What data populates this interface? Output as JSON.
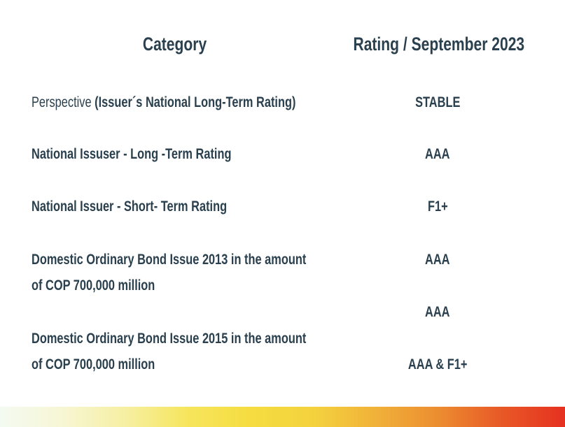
{
  "page": {
    "background_color": "#ffffff",
    "text_color": "#2a404e"
  },
  "table": {
    "headers": {
      "category": "Category",
      "rating": "Rating / September 2023"
    },
    "rows": [
      {
        "category_regular": "Perspective",
        "category_bold": "(Issuer´s National Long-Term Rating)",
        "rating": "STABLE"
      },
      {
        "category": "National Issuser - Long -Term Rating",
        "rating": "AAA"
      },
      {
        "category": "National Issuer - Short- Term Rating",
        "rating": "F1+"
      },
      {
        "category_line1": "Domestic Ordinary Bond Issue 2013 in the amount",
        "category_line2": "of COP 700,000 million",
        "rating": "AAA"
      },
      {
        "rating": "AAA"
      },
      {
        "category_line1": "Domestic Ordinary Bond Issue 2015 in the amount",
        "category_line2": "of COP 700,000 million",
        "rating": "AAA & F1+"
      }
    ]
  },
  "footer": {
    "gradient_bar_colors": [
      "#f3faf2",
      "#f7f6d4",
      "#f6efa2",
      "#f6e55c",
      "#f5dc40",
      "#f4d23e",
      "#f0b139",
      "#ec8c30",
      "#e85827",
      "#e63120"
    ]
  }
}
